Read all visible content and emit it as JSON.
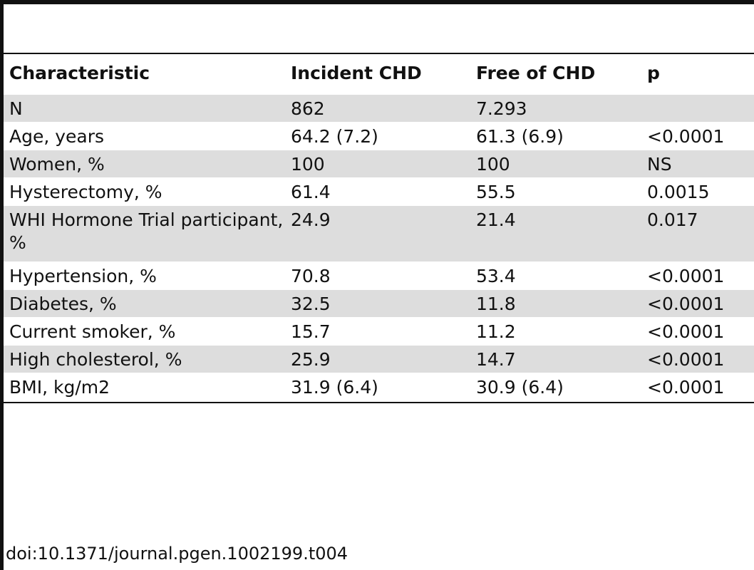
{
  "table": {
    "headers": [
      "Characteristic",
      "Incident CHD",
      "Free of CHD",
      "p"
    ],
    "rows": [
      {
        "characteristic": "N",
        "incident": "862",
        "free": "7.293",
        "p": ""
      },
      {
        "characteristic": "Age, years",
        "incident": "64.2 (7.2)",
        "free": "61.3 (6.9)",
        "p": "<0.0001"
      },
      {
        "characteristic": "Women, %",
        "incident": "100",
        "free": "100",
        "p": "NS"
      },
      {
        "characteristic": "Hysterectomy, %",
        "incident": "61.4",
        "free": "55.5",
        "p": "0.0015"
      },
      {
        "characteristic": "WHI Hormone Trial participant, %",
        "incident": "24.9",
        "free": "21.4",
        "p": "0.017"
      },
      {
        "characteristic": "Hypertension, %",
        "incident": "70.8",
        "free": "53.4",
        "p": "<0.0001"
      },
      {
        "characteristic": "Diabetes, %",
        "incident": "32.5",
        "free": "11.8",
        "p": "<0.0001"
      },
      {
        "characteristic": "Current smoker, %",
        "incident": "15.7",
        "free": "11.2",
        "p": "<0.0001"
      },
      {
        "characteristic": "High cholesterol, %",
        "incident": "25.9",
        "free": "14.7",
        "p": "<0.0001"
      },
      {
        "characteristic": "BMI, kg/m2",
        "incident": "31.9 (6.4)",
        "free": "30.9 (6.4)",
        "p": "<0.0001"
      }
    ]
  },
  "caption": "doi:10.1371/journal.pgen.1002199.t004"
}
